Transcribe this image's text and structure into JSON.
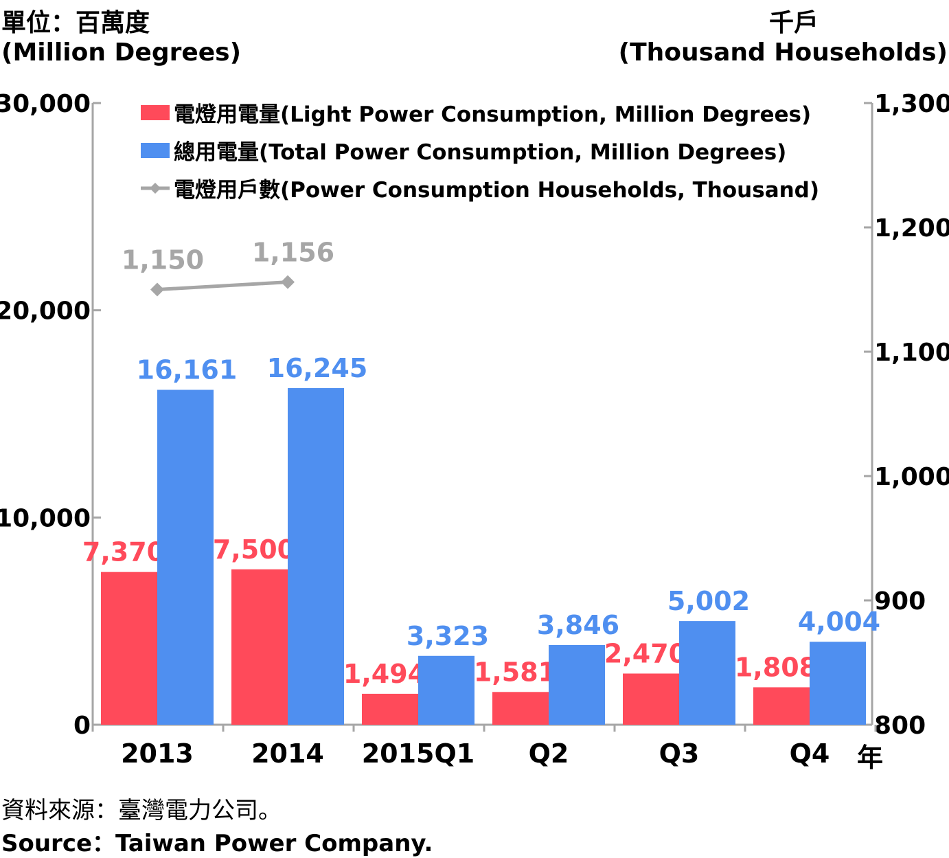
{
  "units": {
    "left_zh": "單位：百萬度",
    "left_en": "(Million Degrees)",
    "right_zh": "千戶",
    "right_en": "(Thousand Households)",
    "x_unit": "年"
  },
  "source": {
    "zh": "資料來源：臺灣電力公司。",
    "en": "Source：Taiwan Power Company."
  },
  "chart_data": {
    "type": "bar",
    "categories": [
      "2013",
      "2014",
      "2015Q1",
      "Q2",
      "Q3",
      "Q4"
    ],
    "y_left": {
      "label": "單位：百萬度 (Million Degrees)",
      "ylim": [
        0,
        30000
      ],
      "ticks": [
        0,
        10000,
        20000,
        30000
      ],
      "tick_labels": [
        "0",
        "10,000",
        "20,000",
        "30,000"
      ]
    },
    "y_right": {
      "label": "千戶 (Thousand Households)",
      "ylim": [
        800,
        1300
      ],
      "ticks": [
        800,
        900,
        1000,
        1100,
        1200,
        1300
      ],
      "tick_labels": [
        "800",
        "900",
        "1,000",
        "1,100",
        "1,200",
        "1,300"
      ]
    },
    "series": [
      {
        "name": "電燈用電量(Light Power Consumption, Million Degrees)",
        "type": "bar",
        "axis": "left",
        "color": "#ff4a5a",
        "values": [
          7370,
          7500,
          1494,
          1581,
          2470,
          1808
        ],
        "labels": [
          "7,370",
          "7,500",
          "1,494",
          "1,581",
          "2,470",
          "1,808"
        ]
      },
      {
        "name": "總用電量(Total Power Consumption, Million Degrees)",
        "type": "bar",
        "axis": "left",
        "color": "#4f8ff0",
        "values": [
          16161,
          16245,
          3323,
          3846,
          5002,
          4004
        ],
        "labels": [
          "16,161",
          "16,245",
          "3,323",
          "3,846",
          "5,002",
          "4,004"
        ]
      },
      {
        "name": "電燈用戶數(Power Consumption Households, Thousand)",
        "type": "line",
        "axis": "right",
        "color": "#a6a6a6",
        "values": [
          1150,
          1156,
          null,
          null,
          null,
          null
        ],
        "labels": [
          "1,150",
          "1,156",
          null,
          null,
          null,
          null
        ]
      }
    ],
    "legend_position": "top-left",
    "grid": false
  }
}
